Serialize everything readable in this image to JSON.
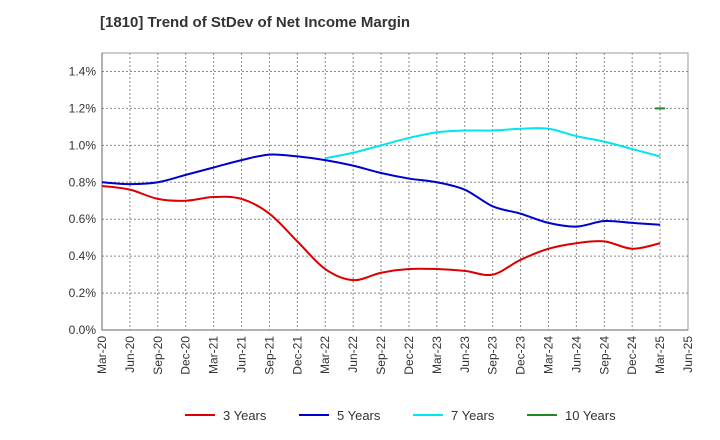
{
  "chart_data": {
    "type": "line",
    "title": "[1810]  Trend of StDev of Net Income Margin",
    "xlabel": "",
    "ylabel": "",
    "ylim": [
      0,
      1.5
    ],
    "y_ticks": [
      "0.0%",
      "0.2%",
      "0.4%",
      "0.6%",
      "0.8%",
      "1.0%",
      "1.2%",
      "1.4%"
    ],
    "y_tick_values": [
      0,
      0.2,
      0.4,
      0.6,
      0.8,
      1.0,
      1.2,
      1.4
    ],
    "x_ticks": [
      "Mar-20",
      "Jun-20",
      "Sep-20",
      "Dec-20",
      "Mar-21",
      "Jun-21",
      "Sep-21",
      "Dec-21",
      "Mar-22",
      "Jun-22",
      "Sep-22",
      "Dec-22",
      "Mar-23",
      "Jun-23",
      "Sep-23",
      "Dec-23",
      "Mar-24",
      "Jun-24",
      "Sep-24",
      "Dec-24",
      "Mar-25",
      "Jun-25"
    ],
    "grid": true,
    "legend_position": "bottom",
    "series": [
      {
        "name": "3 Years",
        "color": "#dd0000",
        "x": [
          "Mar-20",
          "Jun-20",
          "Sep-20",
          "Dec-20",
          "Mar-21",
          "Jun-21",
          "Sep-21",
          "Dec-21",
          "Mar-22",
          "Jun-22",
          "Sep-22",
          "Dec-22",
          "Mar-23",
          "Jun-23",
          "Sep-23",
          "Dec-23",
          "Mar-24",
          "Jun-24",
          "Sep-24",
          "Dec-24",
          "Mar-25"
        ],
        "values": [
          0.78,
          0.76,
          0.71,
          0.7,
          0.72,
          0.71,
          0.63,
          0.48,
          0.33,
          0.27,
          0.31,
          0.33,
          0.33,
          0.32,
          0.3,
          0.38,
          0.44,
          0.47,
          0.48,
          0.44,
          0.47
        ]
      },
      {
        "name": "5 Years",
        "color": "#0000cc",
        "x": [
          "Mar-20",
          "Jun-20",
          "Sep-20",
          "Dec-20",
          "Mar-21",
          "Jun-21",
          "Sep-21",
          "Dec-21",
          "Mar-22",
          "Jun-22",
          "Sep-22",
          "Dec-22",
          "Mar-23",
          "Jun-23",
          "Sep-23",
          "Dec-23",
          "Mar-24",
          "Jun-24",
          "Sep-24",
          "Dec-24",
          "Mar-25"
        ],
        "values": [
          0.8,
          0.79,
          0.8,
          0.84,
          0.88,
          0.92,
          0.95,
          0.94,
          0.92,
          0.89,
          0.85,
          0.82,
          0.8,
          0.76,
          0.67,
          0.63,
          0.58,
          0.56,
          0.59,
          0.58,
          0.57
        ]
      },
      {
        "name": "7 Years",
        "color": "#00e5ee",
        "x": [
          "Mar-22",
          "Jun-22",
          "Sep-22",
          "Dec-22",
          "Mar-23",
          "Jun-23",
          "Sep-23",
          "Dec-23",
          "Mar-24",
          "Jun-24",
          "Sep-24",
          "Dec-24",
          "Mar-25"
        ],
        "values": [
          0.93,
          0.96,
          1.0,
          1.04,
          1.07,
          1.08,
          1.08,
          1.09,
          1.09,
          1.05,
          1.02,
          0.98,
          0.94
        ]
      },
      {
        "name": "10 Years",
        "color": "#228822",
        "x": [
          "Mar-25"
        ],
        "values": [
          1.2
        ]
      }
    ]
  }
}
